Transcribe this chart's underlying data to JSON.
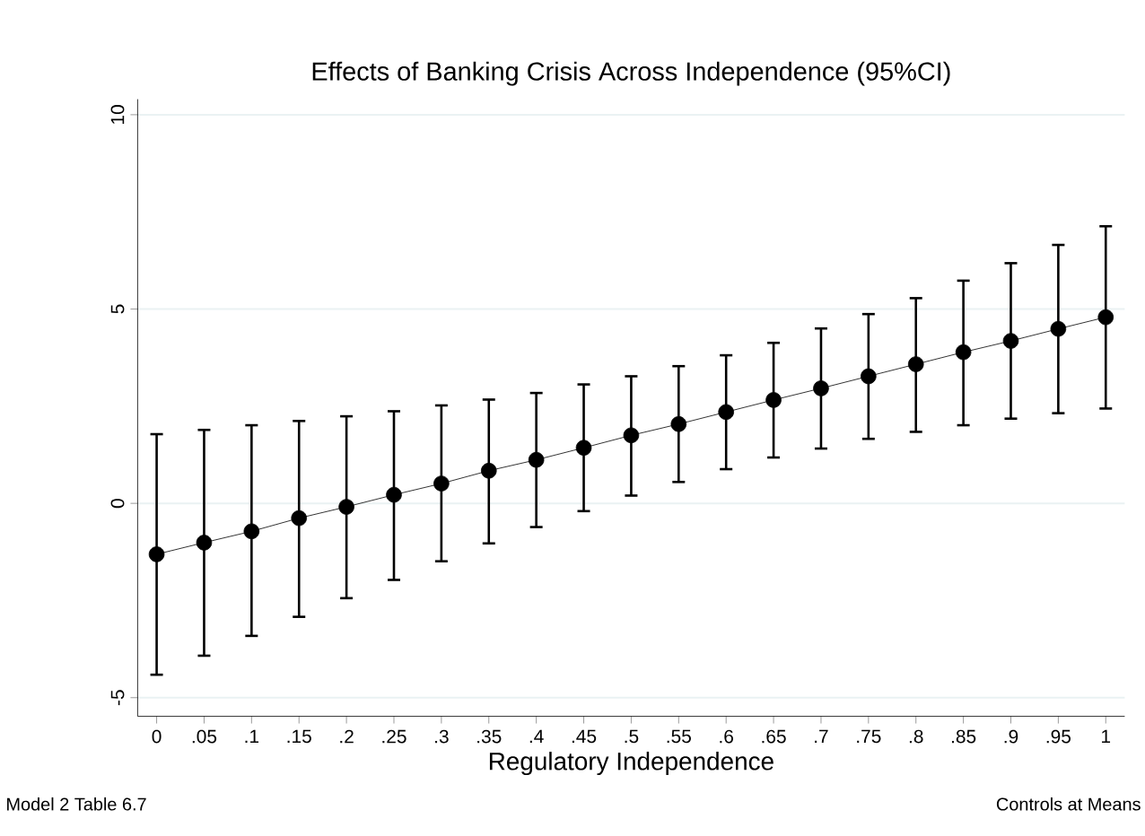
{
  "chart_data": {
    "type": "line",
    "title": "Effects of Banking Crisis Across Independence (95%CI)",
    "xlabel": "Regulatory Independence",
    "annotations": [
      "Model 2 Table 6.7",
      "Controls at Means"
    ],
    "x": [
      0,
      0.05,
      0.1,
      0.15,
      0.2,
      0.25,
      0.3,
      0.35,
      0.4,
      0.45,
      0.5,
      0.55,
      0.6,
      0.65,
      0.7,
      0.75,
      0.8,
      0.85,
      0.9,
      0.95,
      1
    ],
    "values": [
      -1.31,
      -1.01,
      -0.72,
      -0.38,
      -0.09,
      0.22,
      0.51,
      0.84,
      1.12,
      1.43,
      1.75,
      2.04,
      2.35,
      2.66,
      2.96,
      3.27,
      3.58,
      3.89,
      4.18,
      4.49,
      4.79
    ],
    "errors": [
      [
        -4.41,
        1.78
      ],
      [
        -3.92,
        1.89
      ],
      [
        -3.41,
        2.01
      ],
      [
        -2.92,
        2.12
      ],
      [
        -2.44,
        2.24
      ],
      [
        -1.97,
        2.37
      ],
      [
        -1.49,
        2.52
      ],
      [
        -1.03,
        2.67
      ],
      [
        -0.61,
        2.84
      ],
      [
        -0.2,
        3.06
      ],
      [
        0.2,
        3.27
      ],
      [
        0.55,
        3.53
      ],
      [
        0.88,
        3.81
      ],
      [
        1.18,
        4.13
      ],
      [
        1.41,
        4.5
      ],
      [
        1.66,
        4.87
      ],
      [
        1.84,
        5.28
      ],
      [
        2.01,
        5.73
      ],
      [
        2.18,
        6.18
      ],
      [
        2.32,
        6.65
      ],
      [
        2.44,
        7.13
      ]
    ],
    "color": "#000000",
    "marker": "circle",
    "line_style": "solid",
    "grid": "y",
    "xlim": [
      -0.02,
      1.02
    ],
    "ylim": [
      -5.48,
      10.4
    ],
    "xticks": [
      0,
      {
        "value": 0.05,
        "label": ".05"
      },
      {
        "value": 0.1,
        "label": ".1"
      },
      {
        "value": 0.15,
        "label": ".15"
      },
      {
        "value": 0.2,
        "label": ".2"
      },
      {
        "value": 0.25,
        "label": ".25"
      },
      {
        "value": 0.3,
        "label": ".3"
      },
      {
        "value": 0.35,
        "label": ".35"
      },
      {
        "value": 0.4,
        "label": ".4"
      },
      {
        "value": 0.45,
        "label": ".45"
      },
      {
        "value": 0.5,
        "label": ".5"
      },
      {
        "value": 0.55,
        "label": ".55"
      },
      {
        "value": 0.6,
        "label": ".6"
      },
      {
        "value": 0.65,
        "label": ".65"
      },
      {
        "value": 0.7,
        "label": ".7"
      },
      {
        "value": 0.75,
        "label": ".75"
      },
      {
        "value": 0.8,
        "label": ".8"
      },
      {
        "value": 0.85,
        "label": ".85"
      },
      {
        "value": 0.9,
        "label": ".9"
      },
      {
        "value": 0.95,
        "label": ".95"
      },
      1
    ],
    "yticks": [
      -5,
      0,
      5,
      10
    ]
  }
}
